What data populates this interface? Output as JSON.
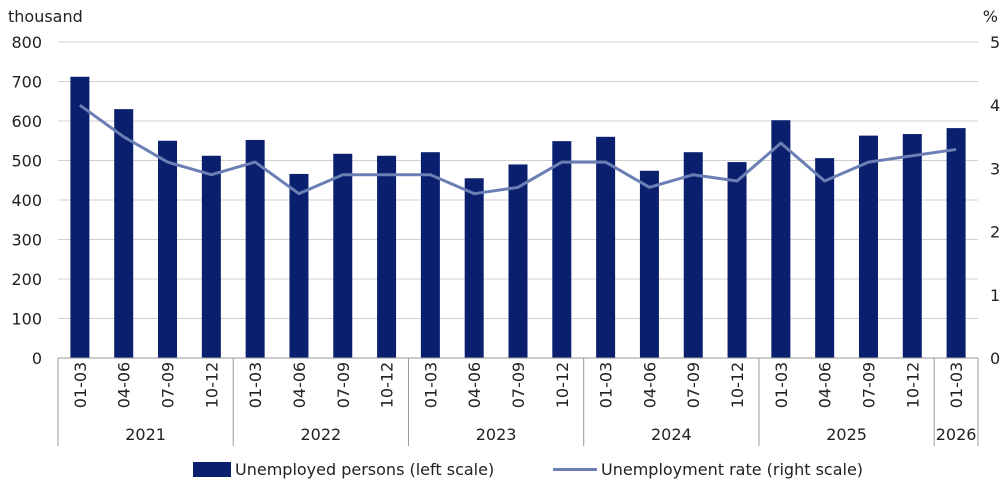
{
  "chart_data": {
    "type": "bar",
    "left_unit": "thousand",
    "right_unit": "%",
    "left_axis": {
      "min": 0,
      "max": 800,
      "step": 100
    },
    "right_axis": {
      "min": 0,
      "max": 5,
      "step": 1
    },
    "grid": true,
    "legend_position": "bottom",
    "categories": [
      "01-03",
      "04-06",
      "07-09",
      "10-12",
      "01-03",
      "04-06",
      "07-09",
      "10-12",
      "01-03",
      "04-06",
      "07-09",
      "10-12",
      "01-03",
      "04-06",
      "07-09",
      "10-12",
      "01-03",
      "04-06",
      "07-09",
      "10-12",
      "01-03"
    ],
    "groups": [
      {
        "label": "2021",
        "count": 4
      },
      {
        "label": "2022",
        "count": 4
      },
      {
        "label": "2023",
        "count": 4
      },
      {
        "label": "2024",
        "count": 4
      },
      {
        "label": "2025",
        "count": 4
      },
      {
        "label": "2026",
        "count": 1
      }
    ],
    "series": [
      {
        "name": "Unemployed persons (left scale)",
        "type": "bar",
        "axis": "left",
        "color": "#0a1f6e",
        "values": [
          712,
          630,
          550,
          512,
          552,
          466,
          517,
          512,
          521,
          455,
          490,
          549,
          560,
          474,
          521,
          496,
          602,
          506,
          563,
          567,
          582
        ]
      },
      {
        "name": "Unemployment rate (right scale)",
        "type": "line",
        "axis": "right",
        "color": "#6b7fb5",
        "values": [
          4.0,
          3.5,
          3.1,
          2.9,
          3.1,
          2.6,
          2.9,
          2.9,
          2.9,
          2.6,
          2.7,
          3.1,
          3.1,
          2.7,
          2.9,
          2.8,
          3.4,
          2.8,
          3.1,
          3.2,
          3.3
        ]
      }
    ]
  }
}
